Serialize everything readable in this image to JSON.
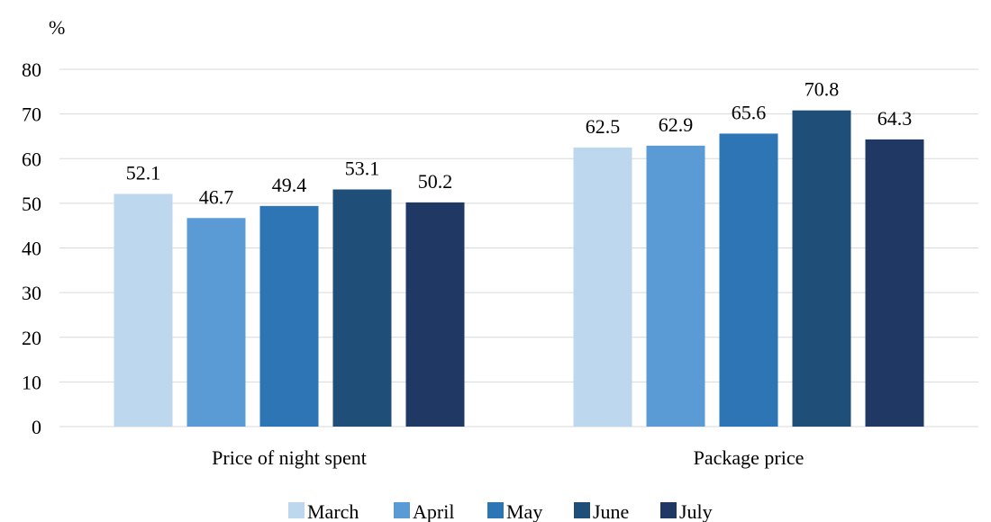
{
  "chart_data": {
    "type": "bar",
    "unit_label": "%",
    "categories": [
      "Price of night spent",
      "Package price"
    ],
    "series": [
      {
        "name": "March",
        "color": "#bdd7ee",
        "values": [
          52.1,
          62.5
        ]
      },
      {
        "name": "April",
        "color": "#5b9bd5",
        "values": [
          46.7,
          62.9
        ]
      },
      {
        "name": "May",
        "color": "#2e75b6",
        "values": [
          49.4,
          65.6
        ]
      },
      {
        "name": "June",
        "color": "#1f4e79",
        "values": [
          53.1,
          70.8
        ]
      },
      {
        "name": "July",
        "color": "#203864",
        "values": [
          50.2,
          64.3
        ]
      }
    ],
    "data_labels": [
      [
        "52.1",
        "62.5"
      ],
      [
        "46.7",
        "62.9"
      ],
      [
        "49.4",
        "65.6"
      ],
      [
        "53.1",
        "70.8"
      ],
      [
        "50.2",
        "64.3"
      ]
    ],
    "ylim": [
      0,
      80
    ],
    "yticks": [
      0,
      10,
      20,
      30,
      40,
      50,
      60,
      70,
      80
    ],
    "ytick_labels": [
      "0",
      "10",
      "20",
      "30",
      "40",
      "50",
      "60",
      "70",
      "80"
    ],
    "grid": true,
    "legend_position": "bottom"
  }
}
